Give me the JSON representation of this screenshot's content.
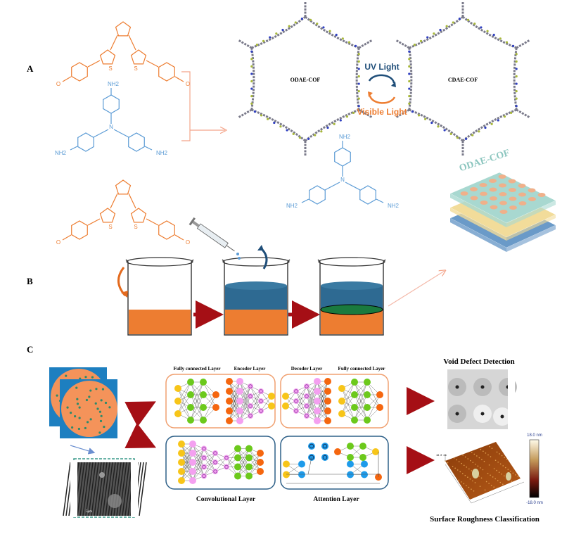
{
  "panels": {
    "a": {
      "label": "A",
      "monomer_atoms": {
        "aldehyde": "O",
        "thiophene": "S",
        "amine": "NH2",
        "nitrogen": "N"
      },
      "cof_open": "ODAE-COF",
      "cof_closed": "CDAE-COF",
      "uv_light": "UV Light",
      "visible_light": "Visible Light"
    },
    "b": {
      "label": "B",
      "film_label": "ODAE-COF"
    },
    "c": {
      "label": "C",
      "net_top_left_labels": [
        "Fully connected Layer",
        "Encoder Layer"
      ],
      "net_top_right_labels": [
        "Decoder Layer",
        "Fully connected Layer"
      ],
      "net_bottom_left_label": "Convolutional Layer",
      "net_bottom_right_label": "Attention Layer",
      "void_title": "Void Defect Detection",
      "roughness_title": "Surface Roughness Classification",
      "colorbar_max": "18.0 nm",
      "colorbar_min": "-18.0 nm",
      "sem_scale": "5μm",
      "afm_axis_z": "18.0 nm"
    }
  },
  "colors": {
    "orange": "#ed7d31",
    "salmon": "#f4a582",
    "blue_chem": "#5b9bd5",
    "dark_blue": "#1f4e79",
    "red_arrow": "#a50f15",
    "beaker_blue": "#2e6a92",
    "beaker_green": "#1a7a3e",
    "node_yellow": "#f7c519",
    "node_green": "#6cc91c",
    "node_pink": "#f4a0f0",
    "node_orange": "#f5660f",
    "node_blue": "#1e9bea",
    "box_orange": "#f0a070",
    "box_blue": "#2e6088"
  }
}
